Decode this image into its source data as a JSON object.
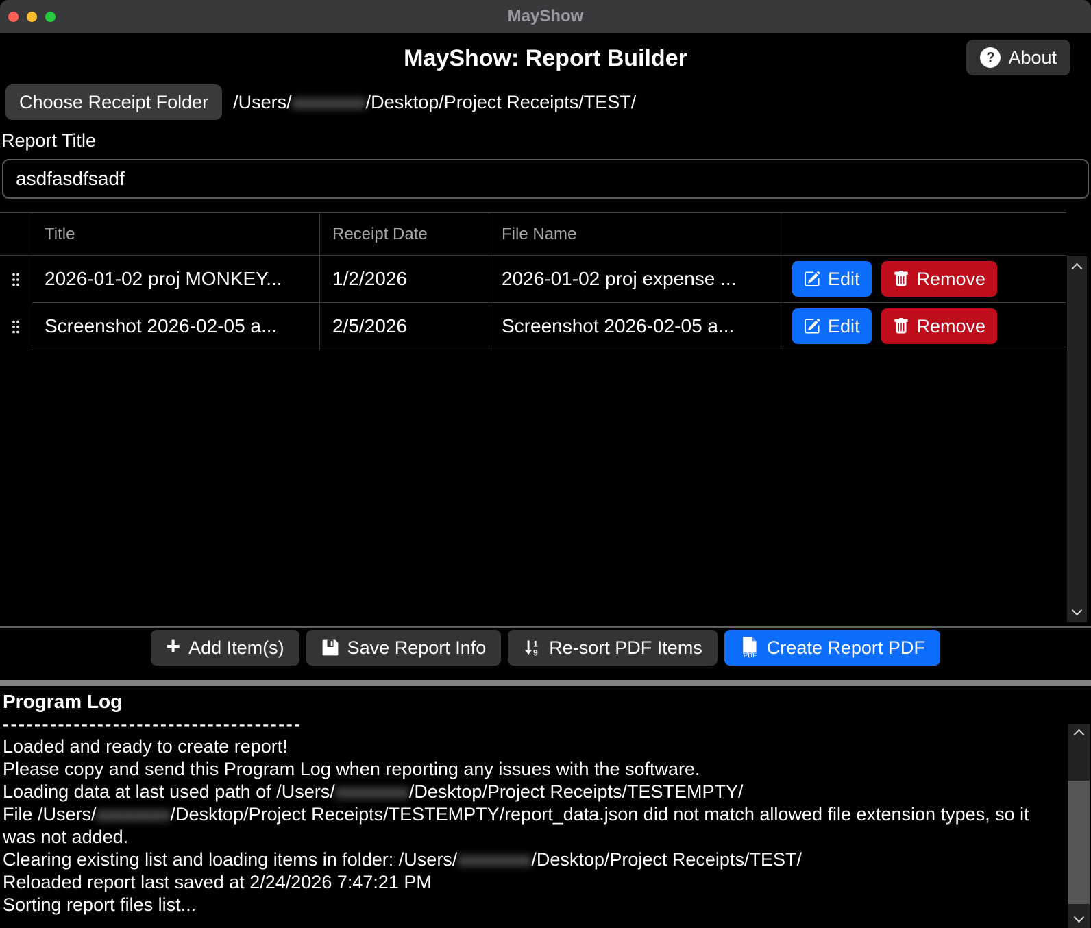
{
  "window": {
    "titlebar_title": "MayShow",
    "traffic_lights": [
      "close",
      "minimize",
      "zoom"
    ]
  },
  "header": {
    "title": "MayShow: Report Builder",
    "about_label": "About",
    "question_glyph": "?"
  },
  "folder": {
    "choose_button_label": "Choose Receipt Folder",
    "path_prefix": "/Users/",
    "path_redacted": "xxxxxxxx",
    "path_suffix": "/Desktop/Project Receipts/TEST/"
  },
  "report_title": {
    "label": "Report Title",
    "value": "asdfasdfsadf"
  },
  "table": {
    "headers": {
      "title": "Title",
      "receipt_date": "Receipt Date",
      "file_name": "File Name"
    },
    "edit_label": "Edit",
    "remove_label": "Remove",
    "rows": [
      {
        "title": "2026-01-02 proj MONKEY...",
        "receipt_date": "1/2/2026",
        "file_name": "2026-01-02 proj expense ..."
      },
      {
        "title": "Screenshot 2026-02-05 a...",
        "receipt_date": "2/5/2026",
        "file_name": "Screenshot 2026-02-05 a..."
      }
    ]
  },
  "actions": {
    "plus_glyph": "+",
    "add_label": "Add Item(s)",
    "save_label": "Save Report Info",
    "resort_label": "Re-sort PDF Items",
    "create_label": "Create Report PDF"
  },
  "log": {
    "heading": "Program Log",
    "dashes": "--------------------------------------",
    "lines": [
      [
        {
          "t": "Loaded and ready to create report!"
        }
      ],
      [
        {
          "t": "Please copy and send this Program Log when reporting any issues with the software."
        }
      ],
      [
        {
          "t": "Loading data at last used path of /Users/"
        },
        {
          "t": "xxxxxxxx",
          "r": true
        },
        {
          "t": "/Desktop/Project Receipts/TESTEMPTY/"
        }
      ],
      [
        {
          "t": "File /Users/"
        },
        {
          "t": "xxxxxxxx",
          "r": true
        },
        {
          "t": "/Desktop/Project Receipts/TESTEMPTY/report_data.json did not match allowed file extension types, so it was not added."
        }
      ],
      [
        {
          "t": "Clearing existing list and loading items in folder: /Users/"
        },
        {
          "t": "xxxxxxxx",
          "r": true
        },
        {
          "t": "/Desktop/Project Receipts/TEST/"
        }
      ],
      [
        {
          "t": "Reloaded report last saved at 2/24/2026 7:47:21 PM"
        }
      ],
      [
        {
          "t": "Sorting report files list..."
        }
      ]
    ]
  },
  "colors": {
    "accent_blue": "#0d6efd",
    "danger_red": "#bf0d1c",
    "titlebar_gray": "#39393b",
    "splitter_gray": "#838383",
    "traffic_red": "#ff5f57",
    "traffic_yellow": "#febc2e",
    "traffic_green": "#28c840"
  }
}
